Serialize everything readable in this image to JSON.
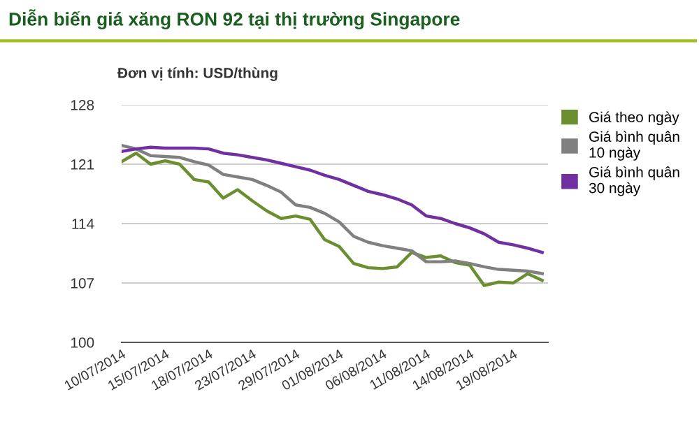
{
  "chart_data": {
    "type": "line",
    "title": "Diễn biến giá xăng RON 92 tại thị trường Singapore",
    "ylabel": "Đơn vị tính: USD/thùng",
    "categories": [
      "10/07/2014",
      null,
      null,
      "15/07/2014",
      null,
      null,
      "18/07/2014",
      null,
      null,
      "23/07/2014",
      null,
      null,
      "29/07/2014",
      null,
      null,
      "01/08/2014",
      null,
      null,
      "06/08/2014",
      null,
      null,
      "11/08/2014",
      null,
      null,
      "14/08/2014",
      null,
      null,
      "19/08/2014",
      null,
      null
    ],
    "series": [
      {
        "name": "Giá theo ngày",
        "color": "#6b8e2f",
        "values": [
          121.3,
          122.3,
          121.0,
          121.4,
          121.0,
          119.2,
          118.9,
          117.0,
          118.0,
          116.7,
          115.5,
          114.6,
          114.9,
          114.5,
          112.1,
          111.3,
          109.3,
          108.8,
          108.7,
          108.9,
          110.6,
          110.0,
          110.2,
          109.4,
          109.1,
          106.7,
          107.1,
          107.0,
          108.1,
          107.3
        ]
      },
      {
        "name": "Giá bình quân 10 ngày",
        "color": "#808080",
        "values": [
          123.2,
          122.8,
          122.0,
          121.9,
          121.8,
          121.3,
          120.9,
          119.8,
          119.5,
          119.2,
          118.5,
          117.7,
          116.2,
          115.9,
          115.2,
          114.2,
          112.5,
          111.8,
          111.4,
          111.1,
          110.8,
          109.5,
          109.5,
          109.6,
          109.3,
          108.9,
          108.6,
          108.5,
          108.4,
          108.1
        ]
      },
      {
        "name": "Giá bình quân 30 ngày",
        "color": "#7030a0",
        "values": [
          122.5,
          122.8,
          123.0,
          122.9,
          122.9,
          122.9,
          122.8,
          122.3,
          122.1,
          121.8,
          121.5,
          121.1,
          120.7,
          120.3,
          119.7,
          119.2,
          118.5,
          117.8,
          117.4,
          116.9,
          116.2,
          114.9,
          114.6,
          114.0,
          113.5,
          112.8,
          111.8,
          111.5,
          111.1,
          110.6
        ]
      }
    ],
    "ylim": [
      100,
      128
    ],
    "yticks": [
      100,
      107,
      114,
      121,
      128
    ],
    "grid": "y",
    "legend": "top right",
    "marker": "none",
    "line_style": "solid"
  }
}
